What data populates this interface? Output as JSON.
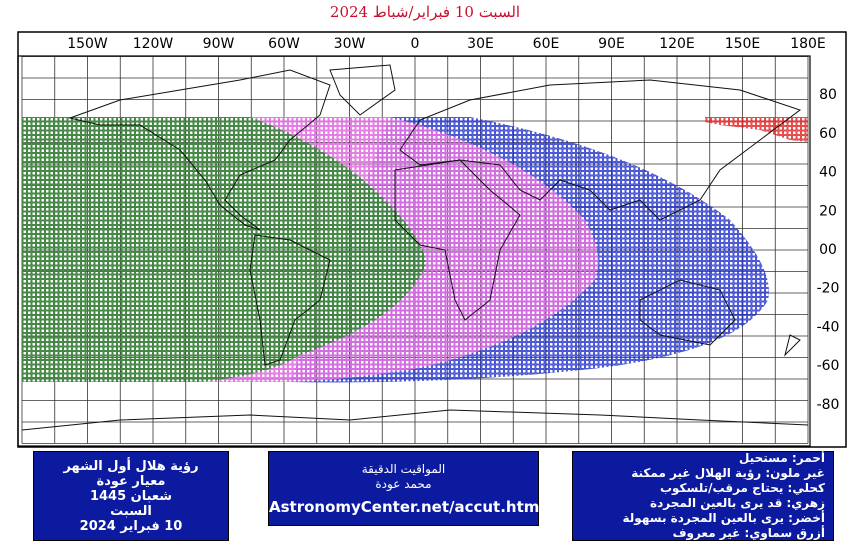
{
  "title": "السبت 10 فبراير/شباط 2024",
  "longitude_labels": [
    "150W",
    "120W",
    "90W",
    "60W",
    "30W",
    "0",
    "30E",
    "60E",
    "90E",
    "120E",
    "150E",
    "180E"
  ],
  "latitude_labels": [
    "80",
    "60",
    "40",
    "20",
    "00",
    "-20",
    "-40",
    "-60",
    "-80"
  ],
  "info_box": [
    "رؤية هلال أول الشهر",
    "معيار عودة",
    "شعبان 1445",
    "السبت",
    "10 فبراير 2024"
  ],
  "source_box": [
    "المواقيت الدقيقة",
    "محمد عودة",
    "AstronomyCenter.net/accut.html"
  ],
  "legend_box": [
    "أحمر: مستحيل",
    "غير ملون: رؤية الهلال غير ممكنة",
    "كحلي: يحتاج مرقب/تلسكوب",
    "زهري: قد يرى بالعين المجردة",
    "أخضر: يرى بالعين المجردة بسهولة",
    "أزرق سماوي: غير معروف"
  ]
}
